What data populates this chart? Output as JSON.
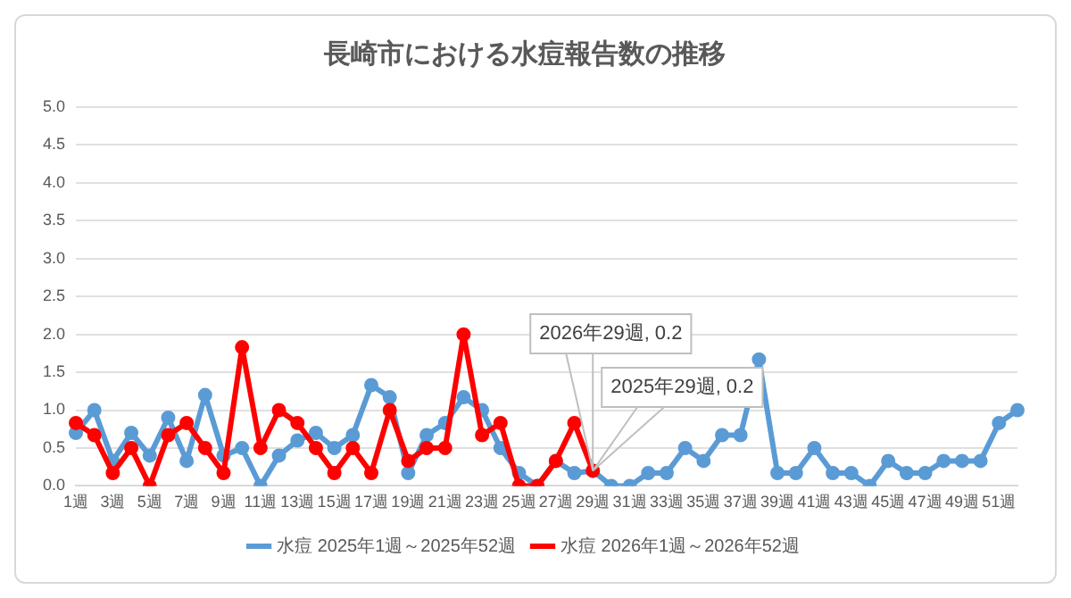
{
  "chart_data": {
    "type": "line",
    "title": "長崎市における水痘報告数の推移",
    "categories": [
      "1週",
      null,
      "3週",
      null,
      "5週",
      null,
      "7週",
      null,
      "9週",
      null,
      "11週",
      null,
      "13週",
      null,
      "15週",
      null,
      "17週",
      null,
      "19週",
      null,
      "21週",
      null,
      "23週",
      null,
      "25週",
      null,
      "27週",
      null,
      "29週",
      null,
      "31週",
      null,
      "33週",
      null,
      "35週",
      null,
      "37週",
      null,
      "39週",
      null,
      "41週",
      null,
      "43週",
      null,
      "45週",
      null,
      "47週",
      null,
      "49週",
      null,
      "51週",
      null
    ],
    "series": [
      {
        "name": "水痘 2025年1週～2025年52週",
        "color": "#5b9bd5",
        "values": [
          0.7,
          1.0,
          0.33,
          0.7,
          0.4,
          0.9,
          0.33,
          1.2,
          0.4,
          0.5,
          0,
          0.4,
          0.6,
          0.7,
          0.5,
          0.67,
          1.33,
          1.17,
          0.17,
          0.67,
          0.83,
          1.17,
          1.0,
          0.5,
          0.17,
          0,
          0.33,
          0.17,
          0.2,
          0,
          0,
          0.17,
          0.17,
          0.5,
          0.33,
          0.67,
          0.67,
          1.67,
          0.17,
          0.17,
          0.5,
          0.17,
          0.17,
          0,
          0.33,
          0.17,
          0.17,
          0.33,
          0.33,
          0.33,
          0.83,
          1.0
        ]
      },
      {
        "name": "水痘 2026年1週～2026年52週",
        "color": "#ff0000",
        "values": [
          0.83,
          0.67,
          0.17,
          0.5,
          0,
          0.67,
          0.83,
          0.5,
          0.17,
          1.83,
          0.5,
          1.0,
          0.83,
          0.5,
          0.17,
          0.5,
          0.17,
          1.0,
          0.33,
          0.5,
          0.5,
          2.0,
          0.67,
          0.83,
          0,
          0,
          0.33,
          0.83,
          0.2,
          null,
          null,
          null,
          null,
          null,
          null,
          null,
          null,
          null,
          null,
          null,
          null,
          null,
          null,
          null,
          null,
          null,
          null,
          null,
          null,
          null,
          null,
          null
        ]
      }
    ],
    "ylim": [
      0,
      5
    ],
    "yticks": [
      {
        "value": 0,
        "label": "0.0"
      },
      {
        "value": 0.5,
        "label": "0.5"
      },
      {
        "value": 1,
        "label": "1.0"
      },
      {
        "value": 1.5,
        "label": "1.5"
      },
      {
        "value": 2,
        "label": "2.0"
      },
      {
        "value": 2.5,
        "label": "2.5"
      },
      {
        "value": 3,
        "label": "3.0"
      },
      {
        "value": 3.5,
        "label": "3.5"
      },
      {
        "value": 4,
        "label": "4.0"
      },
      {
        "value": 4.5,
        "label": "4.5"
      },
      {
        "value": 5,
        "label": "5.0"
      }
    ],
    "grid": "y",
    "legend": "bottom",
    "marker": "circle",
    "line_style": "solid",
    "annotations": [
      {
        "text": "2026年29週, 0.2",
        "x": "29週",
        "y": 0.2
      },
      {
        "text": "2025年29週, 0.2",
        "x": "29週",
        "y": 0.2
      }
    ]
  }
}
